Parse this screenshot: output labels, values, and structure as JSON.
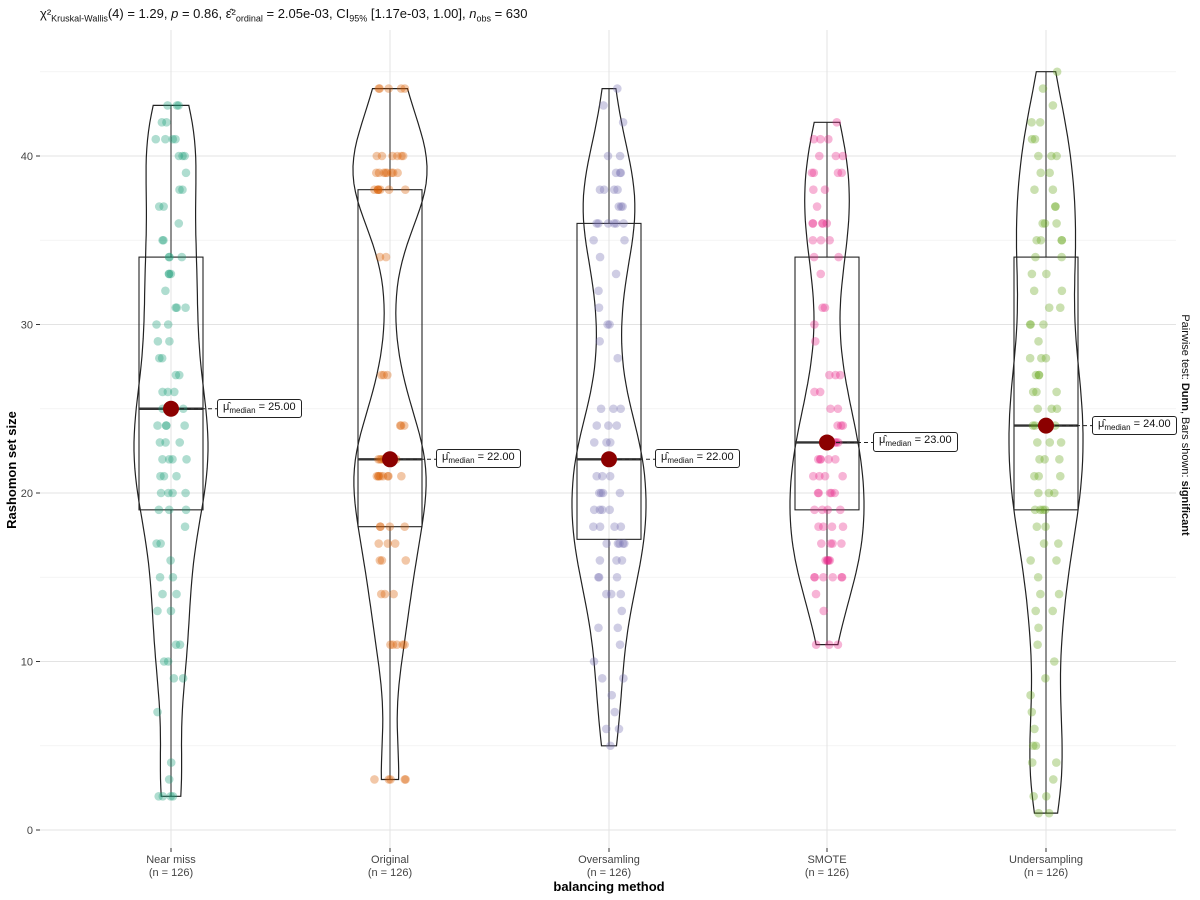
{
  "chart_data": {
    "type": "violin",
    "title_parts": {
      "test_symbol": "χ²",
      "test_name": "Kruskal-Wallis",
      "df": "(4)",
      "statistic": "= 1.29,",
      "p_symbol": "p",
      "p_value": "= 0.86,",
      "effect_symbol": "ε̂²",
      "effect_name": "ordinal",
      "effect_value": "= 2.05e-03,",
      "ci_symbol": "CI",
      "ci_level": "95%",
      "ci_value": "[1.17e-03, 1.00],",
      "n_symbol": "n",
      "n_name": "obs",
      "n_value": "= 630"
    },
    "subtitle_right": {
      "prefix": "Pairwise test:",
      "test": "Dunn",
      "middle": ", Bars shown:",
      "shown": "significant"
    },
    "xlabel": "balancing method",
    "ylabel": "Rashomon set size",
    "ylim": [
      -1,
      47
    ],
    "yticks": [
      0,
      10,
      20,
      30,
      40
    ],
    "grid": true,
    "median_label_prefix": "μ̂",
    "median_label_sub": "median",
    "groups": [
      {
        "name": "Near miss",
        "n_label": "(n = 126)",
        "color": "#1b9e77",
        "q1": 19,
        "median": 25,
        "q3": 34,
        "min": 2,
        "max": 43,
        "median_label": "= 25.00",
        "points": [
          2,
          2,
          2,
          2,
          3,
          4,
          7,
          9,
          9,
          10,
          10,
          11,
          11,
          13,
          13,
          14,
          14,
          15,
          15,
          16,
          17,
          17,
          18,
          19,
          19,
          19,
          20,
          20,
          20,
          20,
          21,
          21,
          21,
          22,
          22,
          22,
          22,
          23,
          23,
          23,
          24,
          24,
          24,
          24,
          25,
          25,
          25,
          26,
          26,
          26,
          27,
          27,
          28,
          28,
          29,
          29,
          30,
          30,
          31,
          31,
          31,
          32,
          33,
          33,
          33,
          34,
          34,
          34,
          35,
          35,
          36,
          37,
          37,
          38,
          38,
          39,
          40,
          40,
          40,
          41,
          41,
          41,
          41,
          42,
          42,
          43,
          43,
          43
        ]
      },
      {
        "name": "Original",
        "n_label": "(n = 126)",
        "color": "#d95f02",
        "q1": 18,
        "median": 22,
        "q3": 38,
        "min": 3,
        "max": 44,
        "median_label": "= 22.00",
        "points": [
          3,
          3,
          3,
          3,
          3,
          11,
          11,
          11,
          11,
          11,
          14,
          14,
          14,
          16,
          16,
          16,
          17,
          17,
          17,
          18,
          18,
          18,
          18,
          21,
          21,
          21,
          21,
          21,
          21,
          21,
          21,
          22,
          22,
          22,
          22,
          22,
          22,
          22,
          24,
          24,
          24,
          27,
          27,
          27,
          34,
          34,
          38,
          38,
          38,
          38,
          38,
          38,
          38,
          39,
          39,
          39,
          39,
          39,
          39,
          39,
          39,
          40,
          40,
          40,
          40,
          40,
          40,
          44,
          44,
          44,
          44,
          44
        ]
      },
      {
        "name": "Oversamling",
        "n_label": "(n = 126)",
        "color": "#7570b3",
        "q1": 17.25,
        "median": 22,
        "q3": 36,
        "min": 5,
        "max": 44,
        "median_label": "= 22.00",
        "points": [
          5,
          6,
          6,
          7,
          8,
          9,
          9,
          10,
          11,
          12,
          12,
          13,
          14,
          14,
          14,
          15,
          15,
          15,
          16,
          16,
          16,
          17,
          17,
          17,
          17,
          17,
          18,
          18,
          18,
          18,
          19,
          19,
          19,
          19,
          20,
          20,
          20,
          20,
          21,
          21,
          21,
          22,
          22,
          22,
          22,
          22,
          22,
          23,
          23,
          23,
          24,
          24,
          24,
          25,
          25,
          25,
          28,
          29,
          30,
          30,
          31,
          32,
          33,
          34,
          35,
          35,
          36,
          36,
          36,
          36,
          36,
          36,
          37,
          37,
          37,
          38,
          38,
          38,
          38,
          39,
          39,
          39,
          40,
          40,
          42,
          43,
          44
        ]
      },
      {
        "name": "SMOTE",
        "n_label": "(n = 126)",
        "color": "#e7298a",
        "q1": 19,
        "median": 23,
        "q3": 34,
        "min": 11,
        "max": 42,
        "median_label": "= 23.00",
        "points": [
          11,
          11,
          11,
          13,
          14,
          15,
          15,
          15,
          15,
          15,
          15,
          16,
          16,
          16,
          16,
          16,
          17,
          17,
          17,
          17,
          18,
          18,
          18,
          18,
          19,
          19,
          19,
          19,
          20,
          20,
          20,
          20,
          20,
          21,
          21,
          21,
          21,
          22,
          22,
          22,
          22,
          22,
          23,
          23,
          23,
          23,
          24,
          24,
          24,
          25,
          25,
          26,
          26,
          27,
          27,
          27,
          29,
          30,
          31,
          31,
          33,
          34,
          34,
          35,
          35,
          35,
          36,
          36,
          36,
          36,
          36,
          37,
          38,
          38,
          39,
          39,
          39,
          39,
          40,
          40,
          40,
          41,
          41,
          41,
          42
        ]
      },
      {
        "name": "Undersampling",
        "n_label": "(n = 126)",
        "color": "#66a61e",
        "q1": 19,
        "median": 24,
        "q3": 34,
        "min": 1,
        "max": 45,
        "median_label": "= 24.00",
        "points": [
          1,
          1,
          2,
          2,
          3,
          4,
          4,
          5,
          5,
          6,
          7,
          8,
          9,
          10,
          11,
          12,
          13,
          13,
          14,
          14,
          15,
          16,
          16,
          17,
          17,
          18,
          18,
          19,
          19,
          19,
          19,
          20,
          20,
          20,
          21,
          21,
          21,
          22,
          22,
          22,
          23,
          23,
          23,
          24,
          24,
          24,
          24,
          25,
          25,
          25,
          26,
          26,
          26,
          27,
          27,
          27,
          28,
          28,
          28,
          29,
          30,
          30,
          30,
          31,
          31,
          32,
          32,
          33,
          33,
          34,
          34,
          35,
          35,
          35,
          35,
          36,
          36,
          36,
          37,
          37,
          38,
          38,
          39,
          39,
          40,
          40,
          40,
          41,
          41,
          42,
          42,
          43,
          44,
          45
        ]
      }
    ]
  }
}
